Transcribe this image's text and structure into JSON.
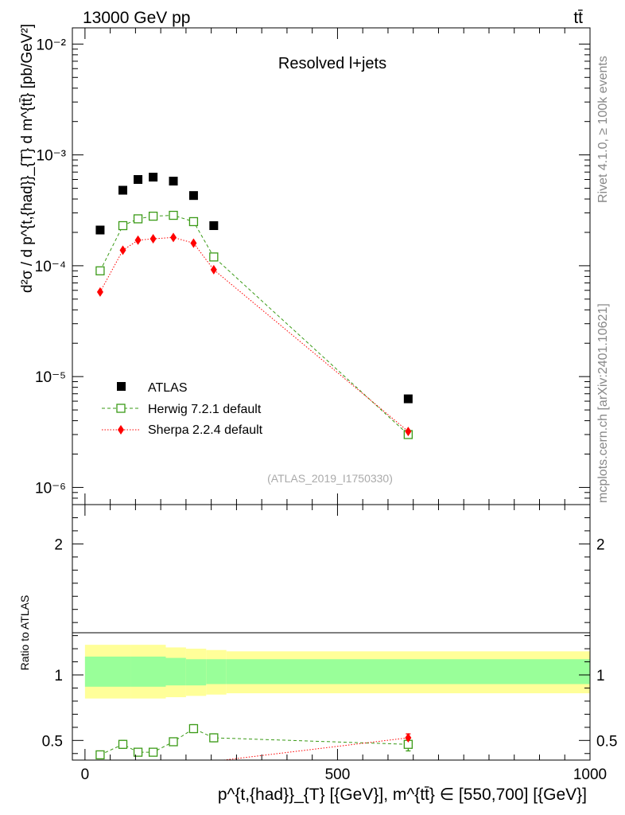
{
  "header": {
    "left": "13000 GeV pp",
    "right": "tt̄"
  },
  "side_labels": {
    "rivet": "Rivet 4.1.0, ≥ 100k events",
    "site": "mcplots.cern.ch [arXiv:2401.10621]"
  },
  "chart_data": [
    {
      "type": "scatter",
      "panel": "main",
      "title": "Resolved l+jets",
      "watermark": "(ATLAS_2019_I1750330)",
      "ylabel": "d²σ / d p^{t,{had}}_{T} d m^{tt̄} [pb/GeV²]",
      "yscale": "log",
      "ylim": [
        7e-07,
        0.014
      ],
      "xlim": [
        -25,
        1000
      ],
      "ytick_labels": [
        "10⁻⁶",
        "10⁻⁵",
        "10⁻⁴",
        "10⁻³",
        "10⁻²"
      ],
      "legend_position": "lower-left",
      "x": [
        30,
        75,
        105,
        135,
        175,
        215,
        255,
        640
      ],
      "series": [
        {
          "name": "ATLAS",
          "color": "#000000",
          "marker": "square-filled",
          "values": [
            0.00021,
            0.00048,
            0.0006,
            0.00063,
            0.00058,
            0.00043,
            0.00023,
            6.3e-06
          ]
        },
        {
          "name": "Herwig 7.2.1 default",
          "color": "#3a9a16",
          "marker": "square-open",
          "line": "dashed",
          "values": [
            9e-05,
            0.00023,
            0.000265,
            0.00028,
            0.000285,
            0.00025,
            0.00012,
            3e-06
          ]
        },
        {
          "name": "Sherpa 2.2.4 default",
          "color": "#ff0000",
          "marker": "diamond",
          "line": "dotted",
          "values": [
            5.8e-05,
            0.000138,
            0.00017,
            0.000175,
            0.00018,
            0.00016,
            9.2e-05,
            3.2e-06
          ]
        }
      ]
    },
    {
      "type": "scatter",
      "panel": "ratio",
      "ylabel": "Ratio to ATLAS",
      "xlabel": "p^{t,{had}}_{T} [{GeV}], m^{tt̄} ∈ [550,700] [{GeV}]",
      "xlim": [
        -25,
        1000
      ],
      "ylim": [
        0.35,
        2.3
      ],
      "xtick_labels": [
        "0",
        "500",
        "1000"
      ],
      "ytick_labels": [
        "0.5",
        "1",
        "2"
      ],
      "uncertainty_bands": {
        "edges": [
          0,
          90,
          160,
          200,
          240,
          280,
          1000
        ],
        "stat_syst_low": [
          0.82,
          0.82,
          0.83,
          0.84,
          0.85,
          0.86
        ],
        "stat_syst_high": [
          1.23,
          1.23,
          1.21,
          1.2,
          1.19,
          1.18
        ],
        "stat_low": [
          0.91,
          0.91,
          0.92,
          0.92,
          0.93,
          0.93
        ],
        "stat_high": [
          1.14,
          1.14,
          1.13,
          1.12,
          1.12,
          1.12
        ],
        "outer_color": "#ffff99",
        "inner_color": "#99ff99"
      },
      "series": [
        {
          "name": "Herwig 7.2.1 default",
          "color": "#3a9a16",
          "x": [
            30,
            75,
            105,
            135,
            175,
            215,
            255,
            640
          ],
          "values": [
            0.39,
            0.47,
            0.41,
            0.41,
            0.49,
            0.59,
            0.52,
            0.47
          ],
          "errors": [
            0.02,
            0.03,
            0.02,
            0.02,
            0.02,
            0.03,
            0.03,
            0.05
          ]
        },
        {
          "name": "Sherpa 2.2.4 default",
          "color": "#ff0000",
          "x": [
            640
          ],
          "values": [
            0.52
          ],
          "errors": [
            0.03
          ],
          "line_from": [
            275,
            0.35
          ]
        }
      ]
    }
  ]
}
